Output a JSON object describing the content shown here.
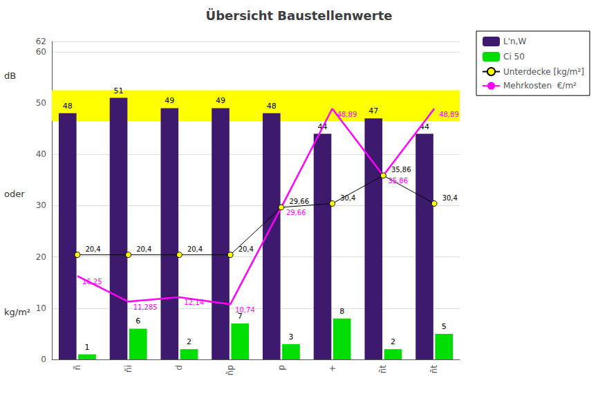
{
  "chart_data": {
    "type": "bar",
    "title": "Übersicht Baustellenwerte",
    "ylabel": [
      "dB",
      "oder",
      "kg/m²"
    ],
    "categories": [
      "ñ",
      "ñi",
      "d",
      "ñp",
      "p",
      "+",
      "ñt",
      "ñt"
    ],
    "series": [
      {
        "name": "L'n,W",
        "type": "bar",
        "color": "#3d1a6e",
        "values": [
          48,
          51,
          49,
          49,
          48,
          44,
          47,
          44
        ]
      },
      {
        "name": "Ci 50",
        "type": "bar",
        "color": "#00dd00",
        "values": [
          1,
          6,
          2,
          7,
          3,
          8,
          2,
          5
        ]
      },
      {
        "name": "Unterdecke [kg/m²]",
        "type": "line",
        "color": "#000000",
        "marker": "circle",
        "values": [
          20.4,
          20.4,
          20.4,
          20.4,
          29.66,
          30.4,
          35.86,
          30.4
        ],
        "value_labels": [
          "20,4",
          "20,4",
          "20,4",
          "20,4",
          "29,66",
          "30,4",
          "35,86",
          "30,4"
        ]
      },
      {
        "name": "Mehrkosten  €/m²",
        "type": "line",
        "color": "#ff00ff",
        "values": [
          16.25,
          11.285,
          12.14,
          10.74,
          29.66,
          48.89,
          35.86,
          48.89
        ],
        "value_labels": [
          "16,25",
          "11,285",
          "12,14",
          "10,74",
          "29,66",
          "48,89",
          "35,86",
          "48,89"
        ]
      }
    ],
    "band": {
      "lower": 46.5,
      "upper": 52.5,
      "color": "yellow"
    },
    "ylim": [
      0,
      62
    ],
    "yticks": [
      0,
      10,
      20,
      30,
      40,
      50,
      60
    ],
    "grid": true,
    "legend": "upper right",
    "data_labels": true
  }
}
